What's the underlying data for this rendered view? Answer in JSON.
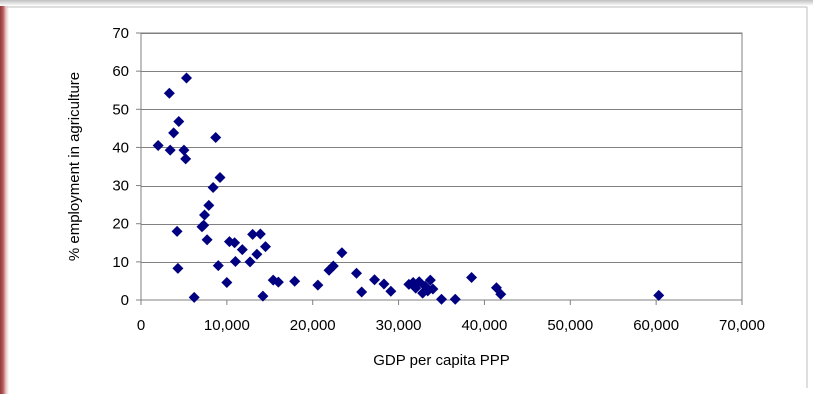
{
  "chart_data": {
    "type": "scatter",
    "title": "",
    "xlabel": "GDP per capita PPP",
    "ylabel": "% employment in agriculture",
    "xlim": [
      0,
      70000
    ],
    "ylim": [
      0,
      70
    ],
    "x_ticks": [
      0,
      10000,
      20000,
      30000,
      40000,
      50000,
      60000,
      70000
    ],
    "x_tick_labels": [
      "0",
      "10,000",
      "20,000",
      "30,000",
      "40,000",
      "50,000",
      "60,000",
      "70,000"
    ],
    "y_ticks": [
      0,
      10,
      20,
      30,
      40,
      50,
      60,
      70
    ],
    "y_tick_labels": [
      "0",
      "10",
      "20",
      "30",
      "40",
      "50",
      "60",
      "70"
    ],
    "grid": "horizontal",
    "legend": "none",
    "marker": "diamond",
    "colors": {
      "marker": "#000080",
      "grid": "#808080",
      "axis": "#808080"
    },
    "series": [
      {
        "points": [
          [
            2000,
            40.5
          ],
          [
            3300,
            54.2
          ],
          [
            3400,
            39.3
          ],
          [
            3800,
            43.8
          ],
          [
            4200,
            18.0
          ],
          [
            4300,
            8.3
          ],
          [
            4400,
            46.8
          ],
          [
            5000,
            39.3
          ],
          [
            5200,
            37.0
          ],
          [
            5300,
            58.2
          ],
          [
            6200,
            0.7
          ],
          [
            7100,
            19.2
          ],
          [
            7300,
            19.6
          ],
          [
            7400,
            22.3
          ],
          [
            7700,
            15.8
          ],
          [
            7900,
            24.8
          ],
          [
            8400,
            29.5
          ],
          [
            8700,
            42.6
          ],
          [
            9000,
            9.0
          ],
          [
            9200,
            32.1
          ],
          [
            10000,
            4.6
          ],
          [
            10300,
            15.3
          ],
          [
            10900,
            15.0
          ],
          [
            11000,
            10.1
          ],
          [
            11800,
            13.2
          ],
          [
            12700,
            10.0
          ],
          [
            13000,
            17.2
          ],
          [
            13500,
            12.0
          ],
          [
            13900,
            17.3
          ],
          [
            14200,
            1.0
          ],
          [
            14500,
            14.0
          ],
          [
            15400,
            5.2
          ],
          [
            16000,
            4.7
          ],
          [
            17900,
            4.9
          ],
          [
            20600,
            3.9
          ],
          [
            21900,
            7.8
          ],
          [
            22400,
            8.9
          ],
          [
            23400,
            12.4
          ],
          [
            25100,
            7.0
          ],
          [
            25700,
            2.1
          ],
          [
            27200,
            5.3
          ],
          [
            28300,
            4.2
          ],
          [
            29100,
            2.3
          ],
          [
            31200,
            4.1
          ],
          [
            31700,
            4.6
          ],
          [
            32000,
            3.1
          ],
          [
            32400,
            4.8
          ],
          [
            32800,
            1.8
          ],
          [
            33100,
            3.6
          ],
          [
            33400,
            2.4
          ],
          [
            33700,
            5.2
          ],
          [
            34000,
            2.9
          ],
          [
            35000,
            0.2
          ],
          [
            36600,
            0.2
          ],
          [
            38500,
            5.9
          ],
          [
            41400,
            3.2
          ],
          [
            41900,
            1.5
          ],
          [
            60300,
            1.2
          ]
        ]
      }
    ]
  }
}
